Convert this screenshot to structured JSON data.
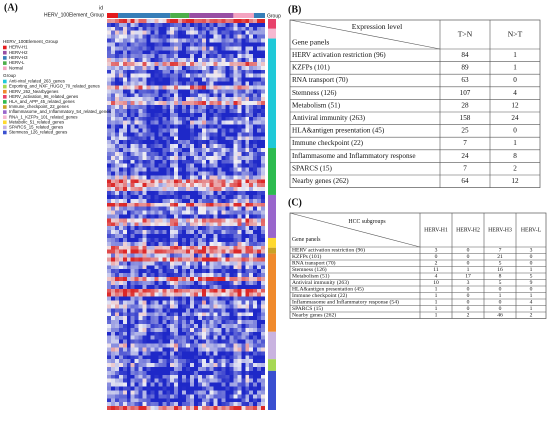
{
  "heatmap": {
    "panel_label": "(A)",
    "col_id": "id",
    "col_annotation_title": "HERV_100Element_Group",
    "row_id": "id",
    "row_annotation_title": "Group",
    "legend1": {
      "title": "HERV_100Element_Group",
      "items": [
        {
          "label": "HERV-H1",
          "color": "#e41a1c"
        },
        {
          "label": "HERV-H2",
          "color": "#984ea3"
        },
        {
          "label": "HERV-H3",
          "color": "#377eb8"
        },
        {
          "label": "HERV-L",
          "color": "#4daf4a"
        },
        {
          "label": "Normal",
          "color": "#f4a3c0"
        }
      ]
    },
    "legend2": {
      "title": "Group",
      "items": [
        {
          "label": "Anti-viral_related_263_genes",
          "color": "#1fc9d8"
        },
        {
          "label": "Exporting_and_NXF_HUGO_70_related_genes",
          "color": "#a6d854"
        },
        {
          "label": "HERV_262_Nearbygenes",
          "color": "#f08a2c"
        },
        {
          "label": "HERV_activation_96_related_genes",
          "color": "#e8416a"
        },
        {
          "label": "HLA_and_APP_45_related_genes",
          "color": "#2dbb4f"
        },
        {
          "label": "Immune_checkpoint_22_genes",
          "color": "#c9a227"
        },
        {
          "label": "Inflammasome_and_Inflammatory_54_related_genes",
          "color": "#9966cc"
        },
        {
          "label": "RNA_1_KZFPs_101_related_genes",
          "color": "#f6b8d0"
        },
        {
          "label": "Metabolic_51_related_genes",
          "color": "#ffd92f"
        },
        {
          "label": "SPARCS_15_related_genes",
          "color": "#c9b3e0"
        },
        {
          "label": "Stemness_126_related_genes",
          "color": "#3a4fd0"
        }
      ]
    }
  },
  "table_b": {
    "panel_label": "(B)",
    "header_top": "Expression level",
    "header_left": "Gene panels",
    "columns": [
      "T>N",
      "N>T"
    ],
    "rows": [
      [
        "HERV activation restriction (96)",
        84,
        1
      ],
      [
        "KZFPs (101)",
        89,
        1
      ],
      [
        "RNA transport (70)",
        63,
        0
      ],
      [
        "Stemness (126)",
        107,
        4
      ],
      [
        "Metabolism (51)",
        28,
        12
      ],
      [
        "Antiviral immunity (263)",
        158,
        24
      ],
      [
        "HLA&antigen presentation (45)",
        25,
        0
      ],
      [
        "Immune checkpoint (22)",
        7,
        1
      ],
      [
        "Inflammasome and Inflammatory response",
        24,
        8
      ],
      [
        "SPARCS (15)",
        7,
        2
      ],
      [
        "Nearby genes (262)",
        64,
        12
      ]
    ]
  },
  "table_c": {
    "panel_label": "(C)",
    "header_top": "HCC subgroups",
    "header_left": "Gene panels",
    "columns": [
      "HERV-H1",
      "HERV-H2",
      "HERV-H3",
      "HERV-L"
    ],
    "rows": [
      [
        "HERV activation restriction (96)",
        3,
        0,
        7,
        3
      ],
      [
        "KZFPs (101)",
        0,
        0,
        21,
        0
      ],
      [
        "RNA transport (70)",
        2,
        0,
        5,
        0
      ],
      [
        "Stemness (126)",
        11,
        1,
        16,
        1
      ],
      [
        "Metabolism (51)",
        4,
        17,
        8,
        5
      ],
      [
        "Antiviral immunity (263)",
        10,
        3,
        5,
        9
      ],
      [
        "HLA&antigen presentation (45)",
        1,
        0,
        0,
        0
      ],
      [
        "Immune checkpoint (22)",
        1,
        0,
        1,
        1
      ],
      [
        "Inflammasome and Inflammatory response (54)",
        1,
        0,
        0,
        4
      ],
      [
        "SPARCS (15)",
        1,
        0,
        0,
        1
      ],
      [
        "Nearby genes (262)",
        1,
        2,
        46,
        2
      ]
    ]
  }
}
